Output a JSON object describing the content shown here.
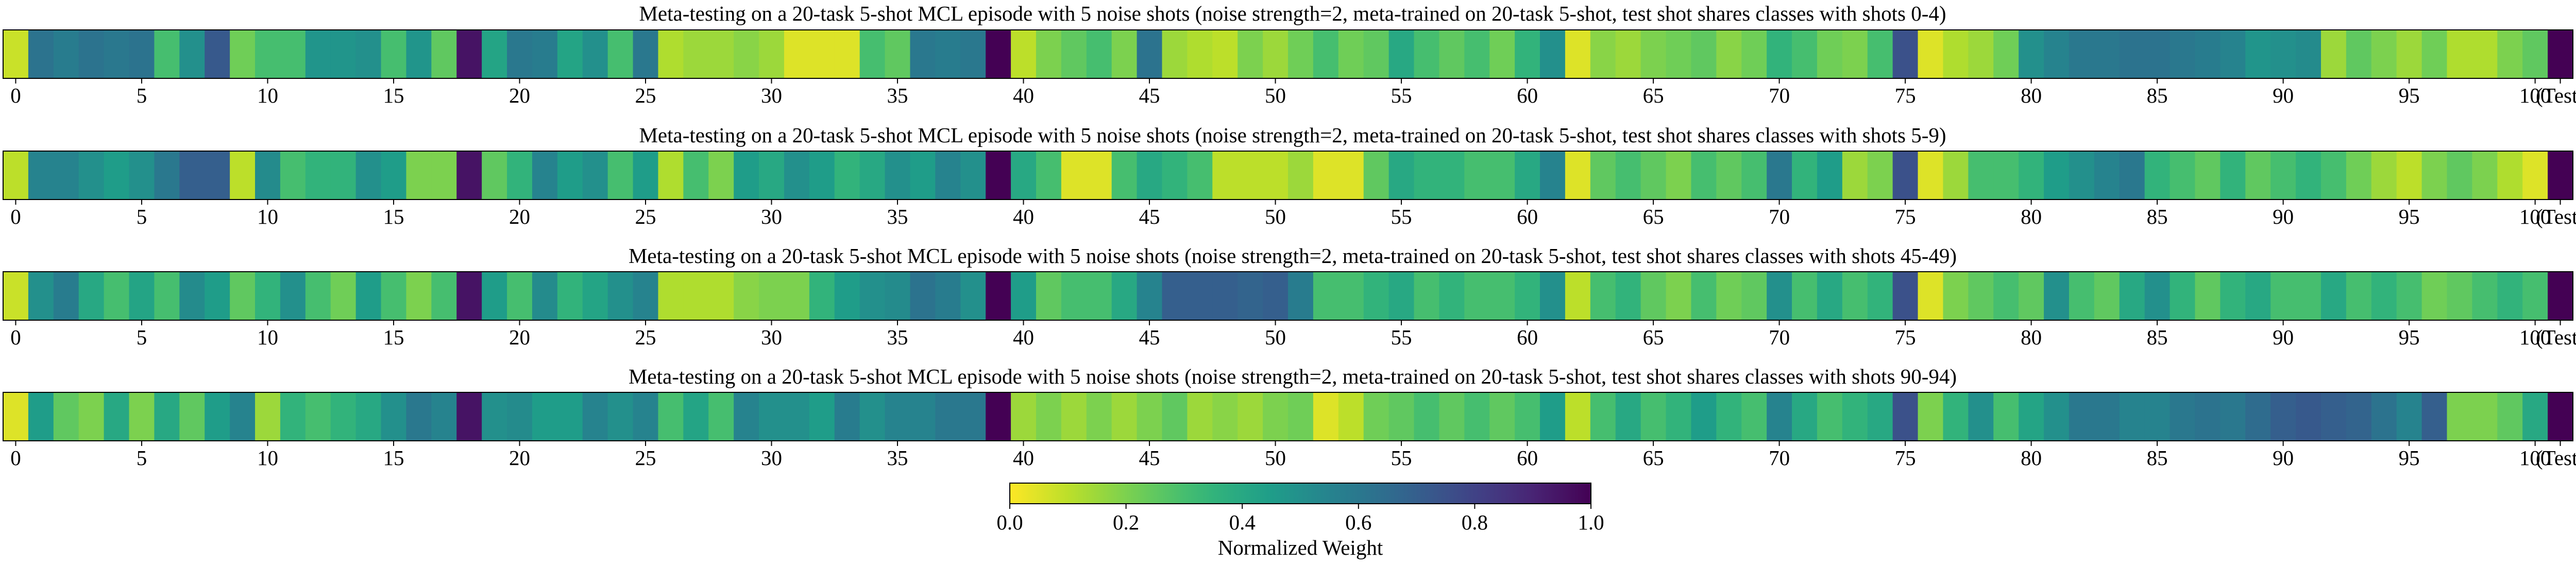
{
  "chart_data": {
    "type": "heatmap",
    "colormap": "viridis_r",
    "cell_count": 102,
    "tick_labels": [
      "0",
      "5",
      "10",
      "15",
      "20",
      "25",
      "30",
      "35",
      "40",
      "45",
      "50",
      "55",
      "60",
      "65",
      "70",
      "75",
      "80",
      "85",
      "90",
      "95",
      "100",
      "(Test)"
    ],
    "tick_cells": [
      0,
      5,
      10,
      15,
      20,
      25,
      30,
      35,
      40,
      45,
      50,
      55,
      60,
      65,
      70,
      75,
      80,
      85,
      90,
      95,
      100,
      101
    ],
    "panels": [
      {
        "title": "Meta-testing on a 20-task 5-shot MCL episode with 5 noise shots (noise strength=2, meta-trained on 20-task 5-shot, test shot shares classes with shots 0-4)",
        "values": [
          0.08,
          0.62,
          0.58,
          0.62,
          0.6,
          0.62,
          0.3,
          0.5,
          0.72,
          0.22,
          0.3,
          0.3,
          0.48,
          0.48,
          0.5,
          0.3,
          0.48,
          0.25,
          0.95,
          0.42,
          0.6,
          0.58,
          0.42,
          0.5,
          0.3,
          0.6,
          0.12,
          0.15,
          0.15,
          0.18,
          0.15,
          0.05,
          0.05,
          0.05,
          0.3,
          0.25,
          0.6,
          0.58,
          0.6,
          1.0,
          0.1,
          0.2,
          0.25,
          0.3,
          0.2,
          0.62,
          0.15,
          0.12,
          0.1,
          0.2,
          0.15,
          0.22,
          0.3,
          0.22,
          0.25,
          0.4,
          0.3,
          0.25,
          0.3,
          0.22,
          0.35,
          0.5,
          0.05,
          0.18,
          0.15,
          0.2,
          0.22,
          0.25,
          0.18,
          0.22,
          0.35,
          0.3,
          0.22,
          0.2,
          0.3,
          0.75,
          0.05,
          0.12,
          0.15,
          0.22,
          0.5,
          0.55,
          0.6,
          0.6,
          0.62,
          0.62,
          0.6,
          0.58,
          0.55,
          0.48,
          0.5,
          0.52,
          0.15,
          0.25,
          0.2,
          0.15,
          0.22,
          0.12,
          0.12,
          0.2,
          0.25,
          1.0
        ]
      },
      {
        "title": "Meta-testing on a 20-task 5-shot MCL episode with 5 noise shots (noise strength=2, meta-trained on 20-task 5-shot, test shot shares classes with shots 5-9)",
        "values": [
          0.1,
          0.55,
          0.55,
          0.5,
          0.45,
          0.5,
          0.6,
          0.7,
          0.7,
          0.1,
          0.52,
          0.3,
          0.35,
          0.35,
          0.5,
          0.45,
          0.2,
          0.2,
          0.95,
          0.25,
          0.35,
          0.55,
          0.45,
          0.5,
          0.3,
          0.45,
          0.12,
          0.3,
          0.2,
          0.45,
          0.4,
          0.5,
          0.45,
          0.35,
          0.4,
          0.5,
          0.45,
          0.55,
          0.5,
          1.0,
          0.4,
          0.3,
          0.05,
          0.05,
          0.3,
          0.4,
          0.35,
          0.3,
          0.1,
          0.1,
          0.1,
          0.15,
          0.05,
          0.05,
          0.25,
          0.4,
          0.35,
          0.35,
          0.3,
          0.3,
          0.4,
          0.55,
          0.05,
          0.25,
          0.3,
          0.25,
          0.2,
          0.3,
          0.25,
          0.3,
          0.6,
          0.35,
          0.45,
          0.15,
          0.2,
          0.75,
          0.05,
          0.15,
          0.3,
          0.3,
          0.35,
          0.45,
          0.5,
          0.55,
          0.6,
          0.35,
          0.3,
          0.25,
          0.35,
          0.25,
          0.3,
          0.35,
          0.3,
          0.22,
          0.15,
          0.1,
          0.2,
          0.25,
          0.2,
          0.12,
          0.05,
          1.0
        ]
      },
      {
        "title": "Meta-testing on a 20-task 5-shot MCL episode with 5 noise shots (noise strength=2, meta-trained on 20-task 5-shot, test shot shares classes with shots 45-49)",
        "values": [
          0.08,
          0.5,
          0.58,
          0.4,
          0.3,
          0.42,
          0.3,
          0.52,
          0.45,
          0.25,
          0.35,
          0.5,
          0.3,
          0.22,
          0.45,
          0.3,
          0.2,
          0.3,
          0.95,
          0.45,
          0.3,
          0.52,
          0.35,
          0.42,
          0.5,
          0.55,
          0.12,
          0.12,
          0.12,
          0.18,
          0.2,
          0.2,
          0.35,
          0.45,
          0.5,
          0.52,
          0.62,
          0.58,
          0.5,
          1.0,
          0.45,
          0.25,
          0.3,
          0.3,
          0.4,
          0.55,
          0.7,
          0.7,
          0.7,
          0.68,
          0.7,
          0.58,
          0.3,
          0.3,
          0.35,
          0.4,
          0.3,
          0.35,
          0.3,
          0.3,
          0.35,
          0.5,
          0.1,
          0.3,
          0.35,
          0.25,
          0.2,
          0.3,
          0.22,
          0.25,
          0.5,
          0.3,
          0.4,
          0.3,
          0.35,
          0.75,
          0.05,
          0.2,
          0.25,
          0.3,
          0.25,
          0.5,
          0.3,
          0.25,
          0.4,
          0.5,
          0.35,
          0.25,
          0.35,
          0.4,
          0.3,
          0.3,
          0.4,
          0.3,
          0.35,
          0.3,
          0.22,
          0.25,
          0.3,
          0.35,
          0.3,
          1.0
        ]
      },
      {
        "title": "Meta-testing on a 20-task 5-shot MCL episode with 5 noise shots (noise strength=2, meta-trained on 20-task 5-shot, test shot shares classes with shots 90-94)",
        "values": [
          0.05,
          0.45,
          0.25,
          0.2,
          0.4,
          0.2,
          0.4,
          0.25,
          0.45,
          0.55,
          0.15,
          0.35,
          0.3,
          0.35,
          0.4,
          0.5,
          0.6,
          0.55,
          0.95,
          0.5,
          0.52,
          0.45,
          0.45,
          0.55,
          0.5,
          0.55,
          0.3,
          0.42,
          0.3,
          0.55,
          0.5,
          0.5,
          0.45,
          0.58,
          0.5,
          0.55,
          0.55,
          0.6,
          0.6,
          1.0,
          0.15,
          0.2,
          0.15,
          0.2,
          0.15,
          0.2,
          0.25,
          0.15,
          0.18,
          0.15,
          0.2,
          0.22,
          0.05,
          0.1,
          0.22,
          0.25,
          0.3,
          0.25,
          0.3,
          0.25,
          0.3,
          0.45,
          0.1,
          0.3,
          0.4,
          0.3,
          0.35,
          0.45,
          0.35,
          0.3,
          0.55,
          0.4,
          0.3,
          0.35,
          0.4,
          0.75,
          0.2,
          0.35,
          0.5,
          0.3,
          0.42,
          0.5,
          0.6,
          0.6,
          0.55,
          0.55,
          0.6,
          0.62,
          0.6,
          0.65,
          0.7,
          0.72,
          0.7,
          0.68,
          0.62,
          0.55,
          0.7,
          0.2,
          0.2,
          0.25,
          0.4,
          1.0
        ]
      }
    ],
    "colorbar": {
      "label": "Normalized Weight",
      "ticks": [
        "0.0",
        "0.2",
        "0.4",
        "0.6",
        "0.8",
        "1.0"
      ],
      "range": [
        0,
        1
      ]
    }
  }
}
